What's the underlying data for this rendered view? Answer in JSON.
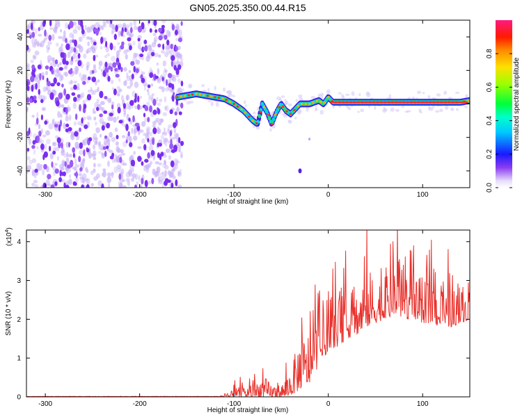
{
  "title": "GN05.2025.350.00.44.R15",
  "chart_data": [
    {
      "type": "heatmap",
      "xlabel": "Height of straight line (km)",
      "ylabel": "Frequency (Hz)",
      "xlim": [
        -320,
        150
      ],
      "ylim": [
        -50,
        50
      ],
      "x_ticks": [
        -300,
        -200,
        -100,
        0,
        100
      ],
      "y_ticks": [
        -40,
        -20,
        0,
        20,
        40
      ],
      "ridge": {
        "x": [
          -160,
          -150,
          -140,
          -130,
          -120,
          -110,
          -100,
          -90,
          -80,
          -75,
          -70,
          -65,
          -60,
          -55,
          -50,
          -45,
          -40,
          -35,
          -30,
          -25,
          -20,
          -15,
          -10,
          -5,
          0,
          5,
          10,
          20,
          40,
          60,
          80,
          100,
          120,
          140,
          150
        ],
        "freq": [
          4,
          5,
          6,
          5,
          4,
          3,
          0,
          -4,
          -10,
          -12,
          0,
          -5,
          -12,
          -5,
          0,
          -4,
          -6,
          -3,
          0,
          0,
          0,
          1,
          2,
          0,
          4,
          1,
          1,
          1,
          1,
          1,
          1,
          1,
          1,
          1,
          2
        ]
      },
      "noise_region_x": [
        -320,
        -155
      ],
      "isolated_blob": {
        "x": -30,
        "freq": -40
      },
      "colorbar": {
        "label": "Normalized spectral amplitude",
        "ticks": [
          "0.0",
          "0.2",
          "0.4",
          "0.6",
          "0.8"
        ],
        "range": [
          0,
          1
        ]
      }
    },
    {
      "type": "line",
      "xlabel": "Height of straight line (km)",
      "ylabel": "SNR (10 * v/v)",
      "multiplier": "(x10",
      "multiplier_exp": "4",
      "multiplier_close": ")",
      "xlim": [
        -320,
        150
      ],
      "ylim": [
        0,
        4.3
      ],
      "x_ticks": [
        -300,
        -200,
        -100,
        0,
        100
      ],
      "y_ticks": [
        0,
        1,
        2,
        3,
        4
      ],
      "series": [
        {
          "name": "SNR",
          "color": "#e8302a",
          "envelope": {
            "x": [
              -320,
              -150,
              -120,
              -105,
              -100,
              -90,
              -80,
              -70,
              -60,
              -50,
              -45,
              -40,
              -35,
              -30,
              -25,
              -20,
              -15,
              -10,
              -5,
              0,
              10,
              20,
              30,
              40,
              50,
              60,
              70,
              80,
              90,
              100,
              110,
              120,
              130,
              140,
              150
            ],
            "baseline": [
              0,
              0,
              0,
              0,
              0,
              0,
              0,
              0,
              0,
              0,
              0,
              0.05,
              0.1,
              0.2,
              0.3,
              0.35,
              0.6,
              0.8,
              1.0,
              1.2,
              1.3,
              1.5,
              1.6,
              1.8,
              1.9,
              2.0,
              2.1,
              2.0,
              2.0,
              1.9,
              1.9,
              1.8,
              1.8,
              1.9,
              2.0
            ],
            "peak": [
              0.02,
              0.02,
              0.05,
              0.1,
              0.35,
              0.35,
              0.5,
              0.8,
              0.5,
              0.45,
              0.8,
              1.1,
              1.6,
              2.3,
              2.1,
              2.4,
              2.4,
              2.6,
              2.8,
              2.7,
              3.0,
              3.4,
              3.3,
              3.9,
              3.8,
              3.4,
              4.2,
              3.6,
              3.4,
              3.6,
              3.6,
              3.1,
              3.3,
              3.2,
              3.0
            ]
          }
        }
      ]
    }
  ]
}
